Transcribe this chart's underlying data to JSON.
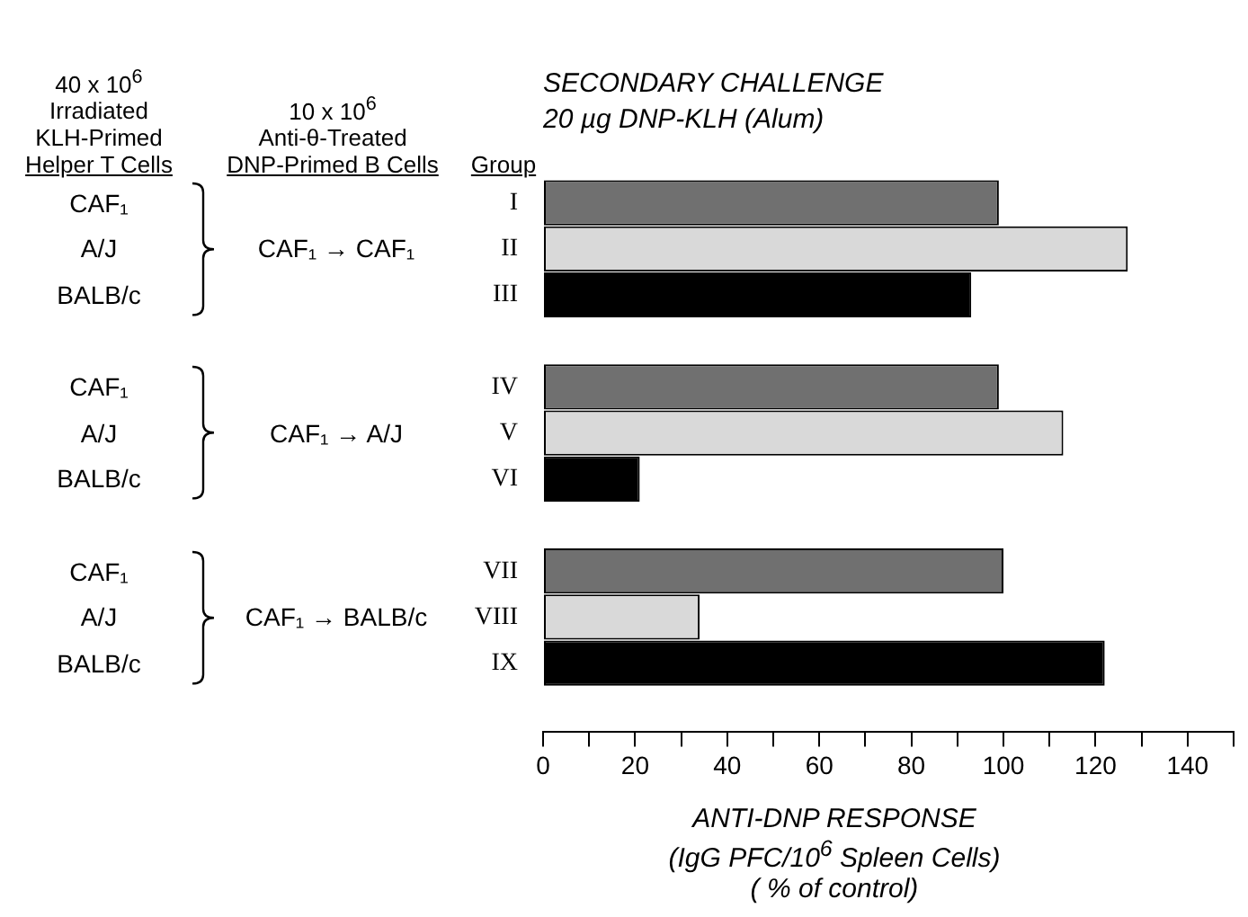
{
  "chart_data": {
    "type": "bar",
    "orientation": "horizontal",
    "title": "SECONDARY CHALLENGE",
    "subtitle": "20 µg DNP-KLH (Alum)",
    "ylabel": "Group",
    "xlabel": "ANTI-DNP RESPONSE\n(IgG PFC/10$^{6}$ Spleen Cells)\n( % of control)",
    "categories": [
      "I",
      "II",
      "III",
      null,
      "IV",
      "V",
      "VI",
      null,
      "VII",
      "VIII",
      "IX",
      null
    ],
    "values": [
      99,
      127,
      93,
      null,
      99,
      113,
      21,
      null,
      100,
      34,
      122,
      null
    ],
    "colors": [
      "#707070",
      "#d9d9d9",
      "#000000",
      null,
      "#707070",
      "#d9d9d9",
      "#000000",
      null,
      "#707070",
      "#d9d9d9",
      "#000000",
      null
    ],
    "xlim": [
      0,
      150
    ],
    "xticks": [
      0,
      {
        "value": 10,
        "label": null
      },
      20,
      {
        "value": 30,
        "label": null
      },
      40,
      {
        "value": 50,
        "label": null
      },
      60,
      {
        "value": 70,
        "label": null
      },
      80,
      {
        "value": 90,
        "label": null
      },
      100,
      {
        "value": 110,
        "label": null
      },
      120,
      {
        "value": 130,
        "label": null
      },
      140,
      {
        "value": 150,
        "label": null
      }
    ],
    "grid": false,
    "legend": false,
    "annotations": [
      "40 x 10$^{6}$\nIrradiated\nKLH-Primed\nHelper T Cells",
      "10 x 10$^{6}$\nAnti-θ-Treated\nDNP-Primed B Cells",
      "CAF₁",
      "A/J",
      "BALB/c",
      "CAF₁",
      "A/J",
      "BALB/c",
      "CAF₁",
      "A/J",
      "BALB/c",
      "CAF₁ → CAF₁",
      "CAF₁ → A/J",
      "CAF₁ → BALB/c"
    ]
  }
}
